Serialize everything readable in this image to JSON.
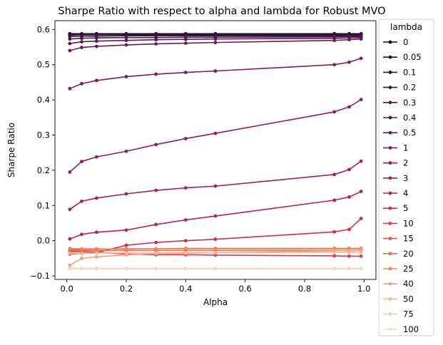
{
  "chart_data": {
    "type": "line",
    "title": "Sharpe Ratio with respect to alpha and lambda for Robust MVO",
    "xlabel": "Alpha",
    "ylabel": "Sharpe Ratio",
    "xlim": [
      -0.04,
      1.04
    ],
    "ylim": [
      -0.11,
      0.625
    ],
    "xticks": [
      0.0,
      0.2,
      0.4,
      0.6,
      0.8,
      1.0
    ],
    "xtick_labels": [
      "0.0",
      "0.2",
      "0.4",
      "0.6",
      "0.8",
      "1.0"
    ],
    "yticks": [
      -0.1,
      0.0,
      0.1,
      0.2,
      0.3,
      0.4,
      0.5,
      0.6
    ],
    "ytick_labels": [
      "−0.1",
      "0.0",
      "0.1",
      "0.2",
      "0.3",
      "0.4",
      "0.5",
      "0.6"
    ],
    "grid": false,
    "legend": {
      "title": "lambda",
      "placement": "outside-right"
    },
    "x": [
      0.01,
      0.05,
      0.1,
      0.2,
      0.3,
      0.4,
      0.5,
      0.9,
      0.95,
      0.99
    ],
    "series": [
      {
        "name": "0",
        "color": "#1b0c1a",
        "values": [
          0.588,
          0.588,
          0.588,
          0.588,
          0.588,
          0.588,
          0.588,
          0.588,
          0.588,
          0.588
        ]
      },
      {
        "name": "0.05",
        "color": "#23112a",
        "values": [
          0.586,
          0.587,
          0.587,
          0.587,
          0.587,
          0.587,
          0.587,
          0.587,
          0.587,
          0.587
        ]
      },
      {
        "name": "0.1",
        "color": "#2d1336",
        "values": [
          0.584,
          0.585,
          0.585,
          0.585,
          0.585,
          0.585,
          0.585,
          0.585,
          0.585,
          0.585
        ]
      },
      {
        "name": "0.2",
        "color": "#3b1541",
        "values": [
          0.58,
          0.581,
          0.581,
          0.582,
          0.582,
          0.582,
          0.582,
          0.582,
          0.582,
          0.583
        ]
      },
      {
        "name": "0.3",
        "color": "#4a164b",
        "values": [
          0.573,
          0.575,
          0.576,
          0.577,
          0.577,
          0.578,
          0.578,
          0.579,
          0.58,
          0.58
        ]
      },
      {
        "name": "0.4",
        "color": "#5c1753",
        "values": [
          0.56,
          0.565,
          0.567,
          0.569,
          0.571,
          0.572,
          0.573,
          0.575,
          0.576,
          0.577
        ]
      },
      {
        "name": "0.5",
        "color": "#6e1a5a",
        "values": [
          0.54,
          0.549,
          0.552,
          0.556,
          0.559,
          0.561,
          0.563,
          0.569,
          0.571,
          0.573
        ]
      },
      {
        "name": "1",
        "color": "#811a5d",
        "values": [
          0.432,
          0.446,
          0.455,
          0.466,
          0.473,
          0.478,
          0.482,
          0.5,
          0.507,
          0.518
        ]
      },
      {
        "name": "2",
        "color": "#941a5e",
        "values": [
          0.195,
          0.225,
          0.238,
          0.254,
          0.273,
          0.29,
          0.305,
          0.366,
          0.38,
          0.401
        ]
      },
      {
        "name": "3",
        "color": "#a91b5b",
        "values": [
          0.089,
          0.112,
          0.121,
          0.133,
          0.143,
          0.15,
          0.155,
          0.188,
          0.202,
          0.226
        ]
      },
      {
        "name": "4",
        "color": "#bc1e57",
        "values": [
          0.005,
          0.018,
          0.024,
          0.03,
          0.046,
          0.059,
          0.07,
          0.115,
          0.124,
          0.14
        ]
      },
      {
        "name": "5",
        "color": "#cf2d4c",
        "values": [
          -0.038,
          -0.036,
          -0.034,
          -0.013,
          -0.005,
          0.0,
          0.004,
          0.025,
          0.032,
          0.063
        ]
      },
      {
        "name": "10",
        "color": "#db3d48",
        "values": [
          -0.031,
          -0.031,
          -0.033,
          -0.038,
          -0.04,
          -0.04,
          -0.041,
          -0.043,
          -0.044,
          -0.044
        ]
      },
      {
        "name": "15",
        "color": "#e4533f",
        "values": [
          -0.025,
          -0.025,
          -0.024,
          -0.023,
          -0.023,
          -0.022,
          -0.022,
          -0.022,
          -0.022,
          -0.022
        ]
      },
      {
        "name": "20",
        "color": "#ec6c47",
        "values": [
          -0.028,
          -0.028,
          -0.028,
          -0.028,
          -0.028,
          -0.028,
          -0.028,
          -0.028,
          -0.028,
          -0.028
        ]
      },
      {
        "name": "25",
        "color": "#f08558",
        "values": [
          -0.022,
          -0.023,
          -0.023,
          -0.024,
          -0.023,
          -0.023,
          -0.023,
          -0.023,
          -0.023,
          -0.023
        ]
      },
      {
        "name": "40",
        "color": "#f3a07b",
        "values": [
          -0.07,
          -0.05,
          -0.046,
          -0.04,
          -0.037,
          -0.036,
          -0.034,
          -0.029,
          -0.028,
          -0.027
        ]
      },
      {
        "name": "50",
        "color": "#f5b698",
        "values": [
          -0.036,
          -0.036,
          -0.035,
          -0.035,
          -0.035,
          -0.034,
          -0.034,
          -0.033,
          -0.033,
          -0.033
        ]
      },
      {
        "name": "75",
        "color": "#f5c9b0",
        "values": [
          -0.079,
          -0.079,
          -0.079,
          -0.079,
          -0.079,
          -0.079,
          -0.079,
          -0.079,
          -0.079,
          -0.079
        ]
      },
      {
        "name": "100",
        "color": "#f4d9c5",
        "values": [
          -0.08,
          -0.08,
          -0.08,
          -0.08,
          -0.08,
          -0.08,
          -0.08,
          -0.08,
          -0.08,
          -0.08
        ]
      }
    ]
  }
}
